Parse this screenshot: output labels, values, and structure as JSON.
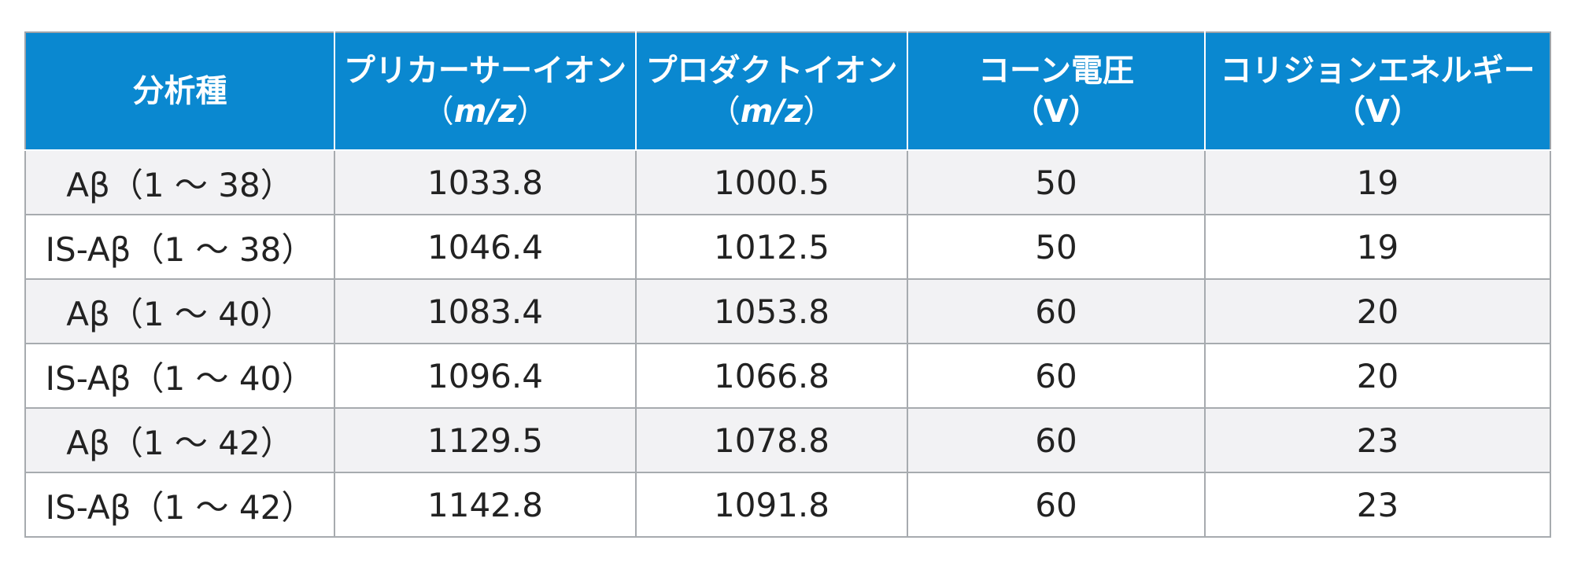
{
  "table": {
    "headers": [
      {
        "line1": "分析種",
        "unit": ""
      },
      {
        "line1": "プリカーサーイオン",
        "unit_open": "（",
        "unit_text": "m/z",
        "unit_close": "）"
      },
      {
        "line1": "プロダクトイオン",
        "unit_open": "（",
        "unit_text": "m/z",
        "unit_close": "）"
      },
      {
        "line1": "コーン電圧",
        "unit": "（V）"
      },
      {
        "line1": "コリジョンエネルギー",
        "unit": "（V）"
      }
    ],
    "rows": [
      {
        "analyte": "Aβ（1 ～ 38）",
        "precursor": "1033.8",
        "product": "1000.5",
        "cone": "50",
        "collision": "19"
      },
      {
        "analyte": "IS-Aβ（1 ～ 38）",
        "precursor": "1046.4",
        "product": "1012.5",
        "cone": "50",
        "collision": "19"
      },
      {
        "analyte": "Aβ（1 ～ 40）",
        "precursor": "1083.4",
        "product": "1053.8",
        "cone": "60",
        "collision": "20"
      },
      {
        "analyte": "IS-Aβ（1 ～ 40）",
        "precursor": "1096.4",
        "product": "1066.8",
        "cone": "60",
        "collision": "20"
      },
      {
        "analyte": "Aβ（1 ～ 42）",
        "precursor": "1129.5",
        "product": "1078.8",
        "cone": "60",
        "collision": "23"
      },
      {
        "analyte": "IS-Aβ（1 ～ 42）",
        "precursor": "1142.8",
        "product": "1091.8",
        "cone": "60",
        "collision": "23"
      }
    ]
  },
  "colors": {
    "header_bg": "#0a88d0",
    "header_text": "#ffffff",
    "row_alt_bg": "#f2f2f4",
    "grid": "#a7abaf"
  }
}
